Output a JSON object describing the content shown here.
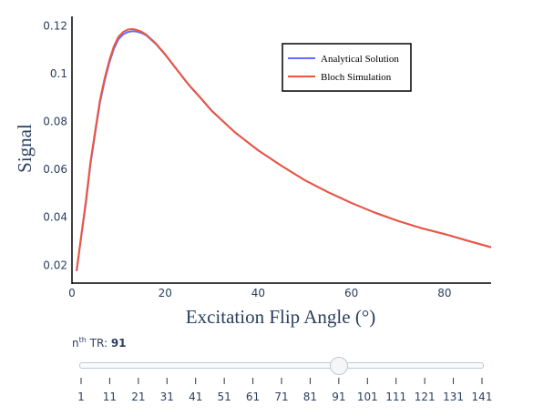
{
  "chart_data": {
    "type": "line",
    "xlabel": "Excitation Flip Angle (°)",
    "ylabel": "Signal",
    "xlim": [
      0,
      90
    ],
    "ylim": [
      0.0125,
      0.124
    ],
    "x_ticks": [
      0,
      20,
      40,
      60,
      80
    ],
    "y_ticks": [
      0.02,
      0.04,
      0.06,
      0.08,
      0.1,
      0.12
    ],
    "y_tick_labels": [
      "0.02",
      "0.04",
      "0.06",
      "0.08",
      "0.1",
      "0.12"
    ],
    "grid": false,
    "legend": "top-right",
    "series": [
      {
        "name": "Analytical Solution",
        "color": "#636efa",
        "x": [
          1,
          2,
          3,
          4,
          5,
          6,
          7,
          8,
          9,
          10,
          11,
          12,
          13,
          14,
          15,
          16,
          18,
          20,
          22,
          25,
          28,
          30,
          35,
          40,
          45,
          50,
          55,
          60,
          65,
          70,
          75,
          80,
          85,
          90
        ],
        "y": [
          0.0175,
          0.032,
          0.046,
          0.0625,
          0.0755,
          0.088,
          0.097,
          0.1045,
          0.1105,
          0.1145,
          0.1165,
          0.1175,
          0.1178,
          0.1176,
          0.117,
          0.116,
          0.1125,
          0.108,
          0.103,
          0.0955,
          0.089,
          0.0845,
          0.0755,
          0.068,
          0.0615,
          0.0555,
          0.0505,
          0.046,
          0.042,
          0.0385,
          0.0355,
          0.033,
          0.0302,
          0.0275
        ]
      },
      {
        "name": "Bloch Simulation",
        "color": "#ef553b",
        "x": [
          1,
          2,
          3,
          4,
          5,
          6,
          7,
          8,
          9,
          10,
          11,
          12,
          13,
          14,
          15,
          16,
          18,
          20,
          22,
          25,
          28,
          30,
          35,
          40,
          45,
          50,
          55,
          60,
          65,
          70,
          75,
          80,
          85,
          90
        ],
        "y": [
          0.0178,
          0.0325,
          0.047,
          0.0635,
          0.0765,
          0.089,
          0.098,
          0.1055,
          0.1115,
          0.1155,
          0.1175,
          0.1185,
          0.1187,
          0.1183,
          0.1175,
          0.1163,
          0.1127,
          0.1082,
          0.1031,
          0.0956,
          0.0891,
          0.0846,
          0.0755,
          0.068,
          0.0615,
          0.0555,
          0.0505,
          0.046,
          0.042,
          0.0385,
          0.0355,
          0.033,
          0.0302,
          0.0275
        ]
      }
    ]
  },
  "slider": {
    "prefix": "n",
    "prefix_sup": "th",
    "prefix_rest": " TR: ",
    "current_value": "91",
    "current_index": 9,
    "steps": [
      "1",
      "11",
      "21",
      "31",
      "41",
      "51",
      "61",
      "71",
      "81",
      "91",
      "101",
      "111",
      "121",
      "131",
      "141"
    ]
  }
}
